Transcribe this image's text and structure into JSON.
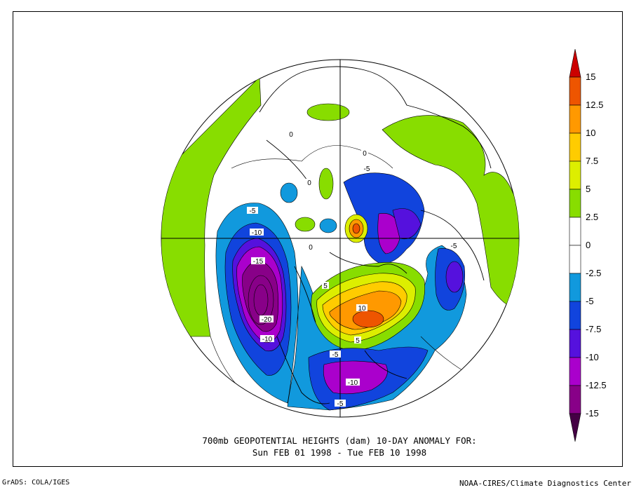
{
  "title": {
    "line1": "700mb GEOPOTENTIAL HEIGHTS (dam)   10-DAY ANOMALY FOR:",
    "line2": "Sun FEB 01 1998 - Tue FEB 10 1998"
  },
  "credits": {
    "left": "GrADS: COLA/IGES",
    "right": "NOAA-CIRES/Climate Diagnostics Center"
  },
  "colorbar": {
    "levels": [
      {
        "label": "15",
        "color": "#cc0000"
      },
      {
        "label": "12.5",
        "color": "#ee5500"
      },
      {
        "label": "10",
        "color": "#ff9900"
      },
      {
        "label": "7.5",
        "color": "#ffcc00"
      },
      {
        "label": "5",
        "color": "#ddee00"
      },
      {
        "label": "2.5",
        "color": "#88dd00"
      },
      {
        "label": "0",
        "color": "#ffffff"
      },
      {
        "label": "-2.5",
        "color": "#ffffff"
      },
      {
        "label": "-5",
        "color": "#1199dd"
      },
      {
        "label": "-7.5",
        "color": "#1144dd"
      },
      {
        "label": "-10",
        "color": "#5511dd"
      },
      {
        "label": "-12.5",
        "color": "#aa00cc"
      },
      {
        "label": "-15",
        "color": "#880088"
      }
    ],
    "top_color": "#cc0000",
    "bottom_color": "#440044"
  },
  "contour_labels": [
    {
      "text": "0"
    },
    {
      "text": "0"
    },
    {
      "text": "0"
    },
    {
      "text": "0"
    },
    {
      "text": "-5"
    },
    {
      "text": "-5"
    },
    {
      "text": "-5"
    },
    {
      "text": "-5"
    },
    {
      "text": "-5"
    },
    {
      "text": "-10"
    },
    {
      "text": "-10"
    },
    {
      "text": "-10"
    },
    {
      "text": "-15"
    },
    {
      "text": "-20"
    },
    {
      "text": "5"
    },
    {
      "text": "5"
    },
    {
      "text": "10"
    }
  ]
}
